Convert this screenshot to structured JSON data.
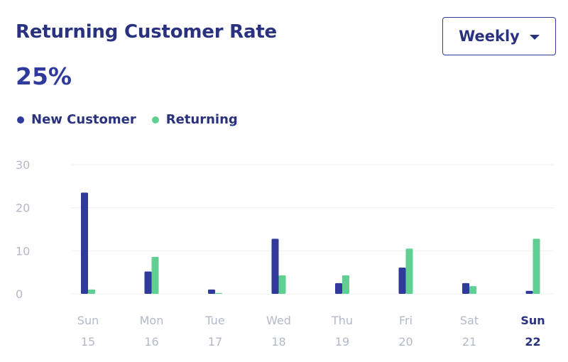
{
  "header": {
    "title": "Returning Customer Rate",
    "rate": "25%"
  },
  "period_select": {
    "label": "Weekly",
    "icon": "chevron-down-icon"
  },
  "legend": [
    {
      "label": "New Customer",
      "color": "#2f3a9c"
    },
    {
      "label": "Returning",
      "color": "#5fcf92"
    }
  ],
  "chart_data": {
    "type": "bar",
    "title": "Returning Customer Rate",
    "xlabel": "",
    "ylabel": "",
    "ylim": [
      0,
      30
    ],
    "yticks": [
      0,
      10,
      20,
      30
    ],
    "grid": true,
    "legend_position": "top-left",
    "categories": [
      {
        "day": "Sun",
        "date": "15",
        "active": false
      },
      {
        "day": "Mon",
        "date": "16",
        "active": false
      },
      {
        "day": "Tue",
        "date": "17",
        "active": false
      },
      {
        "day": "Wed",
        "date": "18",
        "active": false
      },
      {
        "day": "Thu",
        "date": "19",
        "active": false
      },
      {
        "day": "Fri",
        "date": "20",
        "active": false
      },
      {
        "day": "Sat",
        "date": "21",
        "active": false
      },
      {
        "day": "Sun",
        "date": "22",
        "active": true
      }
    ],
    "series": [
      {
        "name": "New Customer",
        "color": "#2f3a9c",
        "values": [
          23.5,
          5.2,
          1.0,
          12.8,
          2.5,
          6.1,
          2.5,
          0.7
        ]
      },
      {
        "name": "Returning",
        "color": "#5fcf92",
        "values": [
          1.0,
          8.6,
          0.2,
          4.3,
          4.3,
          10.5,
          1.8,
          12.8
        ]
      }
    ]
  }
}
